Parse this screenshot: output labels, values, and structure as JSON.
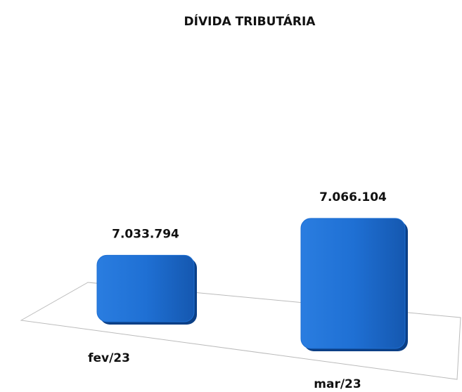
{
  "chart_data": {
    "type": "bar",
    "title": "DÍVIDA TRIBUTÁRIA",
    "categories": [
      "fev/23",
      "mar/23"
    ],
    "values": [
      7033794,
      7066104
    ],
    "value_labels": [
      "7.033.794",
      "7.066.104"
    ],
    "color": "#1e6fd2",
    "ylim": [
      7000000,
      7100000
    ]
  }
}
